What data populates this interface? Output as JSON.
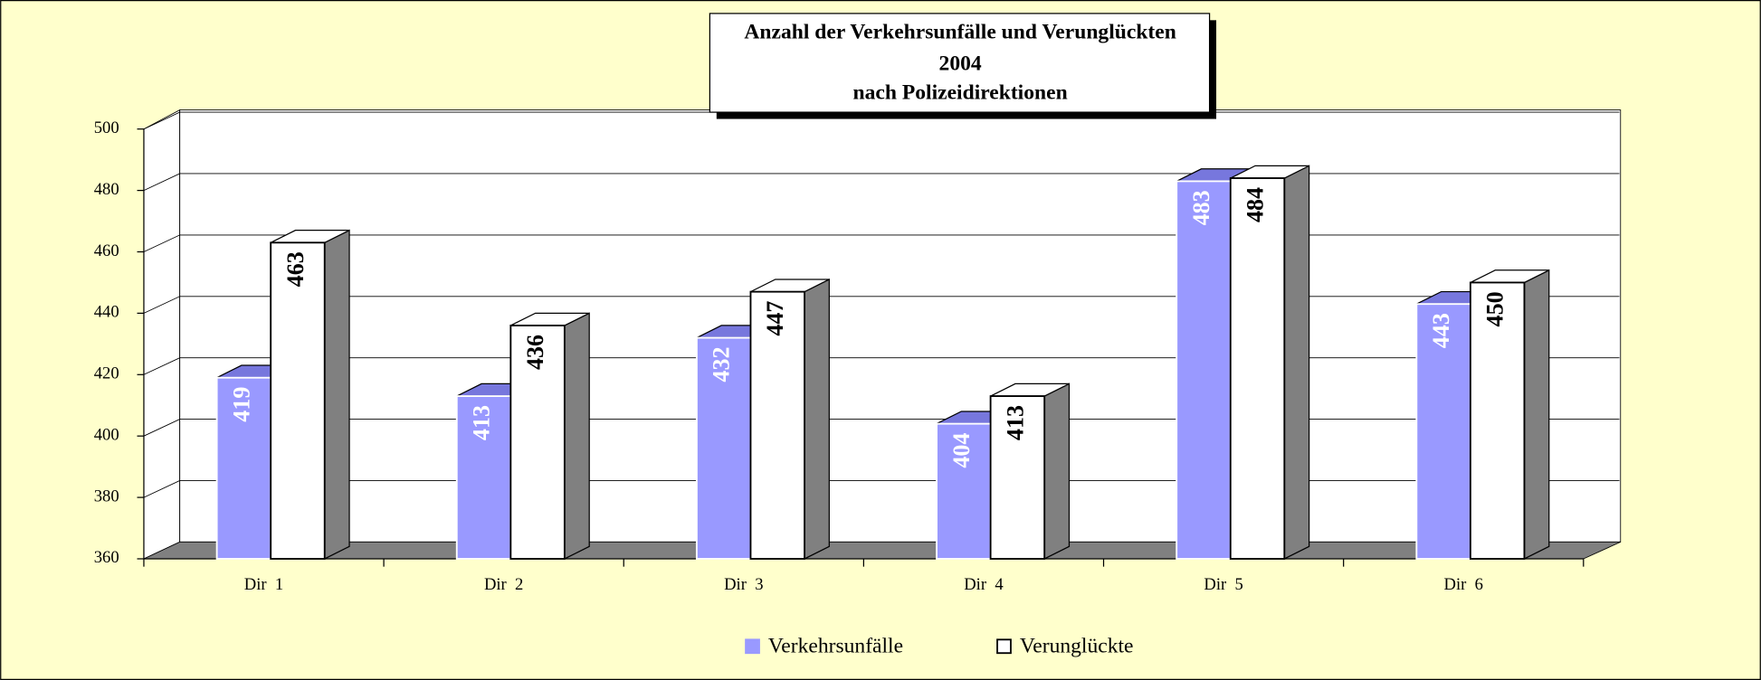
{
  "chart_data": {
    "type": "bar3d",
    "title": [
      "Anzahl der Verkehrsunfälle und Verunglückten",
      "2004",
      "nach Polizeidirektionen"
    ],
    "categories": [
      "Dir  1",
      "Dir  2",
      "Dir  3",
      "Dir  4",
      "Dir  5",
      "Dir  6"
    ],
    "series": [
      {
        "name": "Verkehrsunfälle",
        "color": "#9999ff",
        "label_color": "#ffffff",
        "values": [
          419,
          413,
          432,
          404,
          483,
          443
        ]
      },
      {
        "name": "Verunglückte",
        "color": "#ffffff",
        "label_color": "#000000",
        "values": [
          463,
          436,
          447,
          413,
          484,
          450
        ]
      }
    ],
    "ylim": [
      360,
      500
    ],
    "yticks": [
      360,
      380,
      400,
      420,
      440,
      460,
      480,
      500
    ],
    "grid": true,
    "legend": "bottom"
  }
}
